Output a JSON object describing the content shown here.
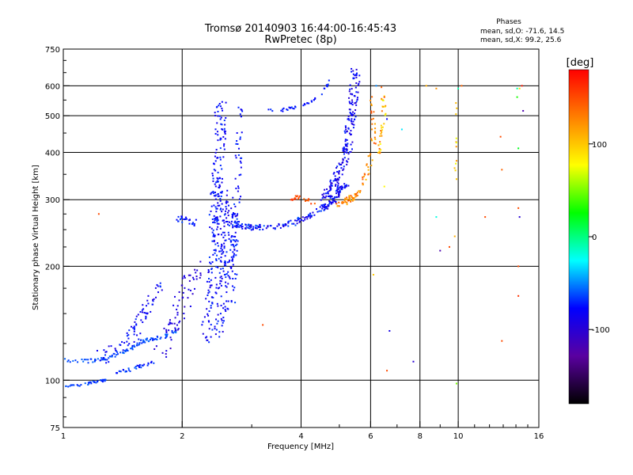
{
  "chart_data": {
    "type": "scatter",
    "title": "Tromsø 20140903 16:44:00-16:45:43",
    "subtitle": "RwPretec (8p)",
    "xlabel": "Frequency [MHz]",
    "ylabel": "Stationary phase Virtual Height [km]",
    "x_scale": "log",
    "y_scale": "log",
    "xlim": [
      1,
      16
    ],
    "ylim": [
      75,
      750
    ],
    "x_ticks": [
      1,
      2,
      4,
      6,
      8,
      10,
      16
    ],
    "x_tick_labels": [
      "1",
      "2",
      "4",
      "6",
      "8",
      "10",
      "16"
    ],
    "y_ticks": [
      75,
      100,
      200,
      300,
      400,
      500,
      600,
      750
    ],
    "y_tick_labels": [
      "75",
      "100",
      "200",
      "300",
      "400",
      "500",
      "600",
      "750"
    ],
    "grid": true,
    "legend": {
      "title": "Phases",
      "lines": [
        "mean, sd,O: -71.6, 14.5",
        "mean, sd,X:  99.2, 25.6"
      ],
      "placement": "top-right"
    },
    "colorbar": {
      "label": "[deg]",
      "range": [
        -180,
        180
      ],
      "ticks": [
        100,
        0,
        -100
      ],
      "tick_labels": [
        "100",
        "0",
        "-100"
      ],
      "colormap": [
        "#000000",
        "#5a00a0",
        "#0000ff",
        "#00ffff",
        "#00ff00",
        "#ffff00",
        "#ff8000",
        "#ff0000"
      ]
    },
    "traces": [
      {
        "seg": [
          [
            1.0,
            113
          ],
          [
            1.15,
            112
          ],
          [
            1.3,
            115
          ],
          [
            1.45,
            120
          ],
          [
            1.6,
            127
          ],
          [
            1.8,
            130
          ],
          [
            1.95,
            136
          ]
        ],
        "w": 5,
        "n": 110,
        "p": -62,
        "s": 8
      },
      {
        "seg": [
          [
            1.0,
            96
          ],
          [
            1.1,
            97
          ],
          [
            1.2,
            99
          ],
          [
            1.28,
            100
          ]
        ],
        "w": 3,
        "n": 40,
        "p": -65,
        "s": 8
      },
      {
        "seg": [
          [
            1.35,
            104
          ],
          [
            1.5,
            107
          ],
          [
            1.7,
            112
          ]
        ],
        "w": 4,
        "n": 35,
        "p": -70,
        "s": 12
      },
      {
        "seg": [
          [
            1.25,
            115
          ],
          [
            1.45,
            128
          ],
          [
            1.6,
            150
          ],
          [
            1.75,
            175
          ]
        ],
        "w": 18,
        "n": 80,
        "p": -80,
        "s": 15
      },
      {
        "seg": [
          [
            1.75,
            118
          ],
          [
            1.9,
            140
          ],
          [
            2.05,
            170
          ],
          [
            2.2,
            200
          ]
        ],
        "w": 20,
        "n": 70,
        "p": -95,
        "s": 12
      },
      {
        "seg": [
          [
            1.95,
            265
          ],
          [
            2.05,
            268
          ],
          [
            2.15,
            260
          ]
        ],
        "w": 8,
        "n": 25,
        "p": -72,
        "s": 10
      },
      {
        "seg": [
          [
            2.35,
            130
          ],
          [
            2.45,
            160
          ],
          [
            2.5,
            200
          ],
          [
            2.55,
            240
          ],
          [
            2.6,
            300
          ]
        ],
        "w": 30,
        "n": 260,
        "p": -80,
        "s": 15
      },
      {
        "seg": [
          [
            2.4,
            250
          ],
          [
            2.45,
            330
          ],
          [
            2.5,
            420
          ],
          [
            2.5,
            560
          ]
        ],
        "w": 14,
        "n": 120,
        "p": -78,
        "s": 14
      },
      {
        "seg": [
          [
            2.7,
            160
          ],
          [
            2.75,
            250
          ],
          [
            2.78,
            400
          ],
          [
            2.8,
            540
          ]
        ],
        "w": 8,
        "n": 70,
        "p": -75,
        "s": 12
      },
      {
        "seg": [
          [
            2.6,
            260
          ],
          [
            2.9,
            254
          ],
          [
            3.3,
            253
          ],
          [
            3.8,
            260
          ],
          [
            4.3,
            275
          ],
          [
            4.8,
            295
          ],
          [
            5.2,
            330
          ]
        ],
        "w": 7,
        "n": 190,
        "p": -78,
        "s": 20
      },
      {
        "seg": [
          [
            4.6,
            300
          ],
          [
            5.0,
            350
          ],
          [
            5.25,
            420
          ],
          [
            5.4,
            520
          ],
          [
            5.5,
            650
          ]
        ],
        "w": 12,
        "n": 200,
        "p": -85,
        "s": 18
      },
      {
        "seg": [
          [
            4.9,
            290
          ],
          [
            5.3,
            300
          ],
          [
            5.6,
            315
          ],
          [
            5.9,
            360
          ],
          [
            6.1,
            430
          ],
          [
            6.0,
            560
          ]
        ],
        "w": 7,
        "n": 90,
        "p": 125,
        "s": 25
      },
      {
        "seg": [
          [
            3.3,
            515
          ],
          [
            3.6,
            518
          ],
          [
            4.0,
            528
          ],
          [
            4.3,
            545
          ],
          [
            4.5,
            575
          ],
          [
            4.7,
            615
          ]
        ],
        "w": 4,
        "n": 40,
        "p": -72,
        "s": 8
      },
      {
        "seg": [
          [
            3.7,
            300
          ],
          [
            4.0,
            305
          ],
          [
            4.3,
            295
          ]
        ],
        "w": 5,
        "n": 20,
        "p": 150,
        "s": 12
      },
      {
        "seg": [
          [
            6.3,
            390
          ],
          [
            6.4,
            440
          ],
          [
            6.5,
            520
          ],
          [
            6.4,
            600
          ]
        ],
        "w": 5,
        "n": 35,
        "p": 110,
        "s": 40
      },
      {
        "seg": [
          [
            9.8,
            300
          ],
          [
            9.85,
            420
          ],
          [
            9.9,
            600
          ]
        ],
        "w": 2,
        "n": 10,
        "p": 100,
        "s": 35
      }
    ],
    "scatter": [
      [
        1.23,
        275,
        150
      ],
      [
        3.2,
        140,
        150
      ],
      [
        6.1,
        190,
        100
      ],
      [
        6.5,
        325,
        80
      ],
      [
        6.6,
        106,
        150
      ],
      [
        6.7,
        135,
        -90
      ],
      [
        7.2,
        460,
        -30
      ],
      [
        7.7,
        112,
        -100
      ],
      [
        8.3,
        600,
        110
      ],
      [
        8.8,
        590,
        120
      ],
      [
        9.0,
        220,
        -120
      ],
      [
        9.5,
        225,
        150
      ],
      [
        9.8,
        240,
        110
      ],
      [
        9.9,
        98,
        50
      ],
      [
        9.9,
        340,
        100
      ],
      [
        9.9,
        380,
        120
      ],
      [
        10.0,
        590,
        -10
      ],
      [
        11.7,
        270,
        150
      ],
      [
        12.8,
        440,
        150
      ],
      [
        12.9,
        360,
        140
      ],
      [
        12.9,
        127,
        150
      ],
      [
        14.1,
        590,
        -10
      ],
      [
        14.1,
        560,
        30
      ],
      [
        14.2,
        410,
        20
      ],
      [
        14.2,
        285,
        150
      ],
      [
        14.3,
        270,
        -100
      ],
      [
        14.2,
        200,
        150
      ],
      [
        14.2,
        167,
        160
      ],
      [
        14.6,
        515,
        -120
      ],
      [
        14.5,
        600,
        170
      ],
      [
        14.3,
        590,
        90
      ],
      [
        6.5,
        560,
        150
      ],
      [
        6.6,
        490,
        -80
      ],
      [
        6.2,
        600,
        -50
      ],
      [
        8.8,
        270,
        -20
      ],
      [
        10.2,
        600,
        140
      ]
    ]
  }
}
